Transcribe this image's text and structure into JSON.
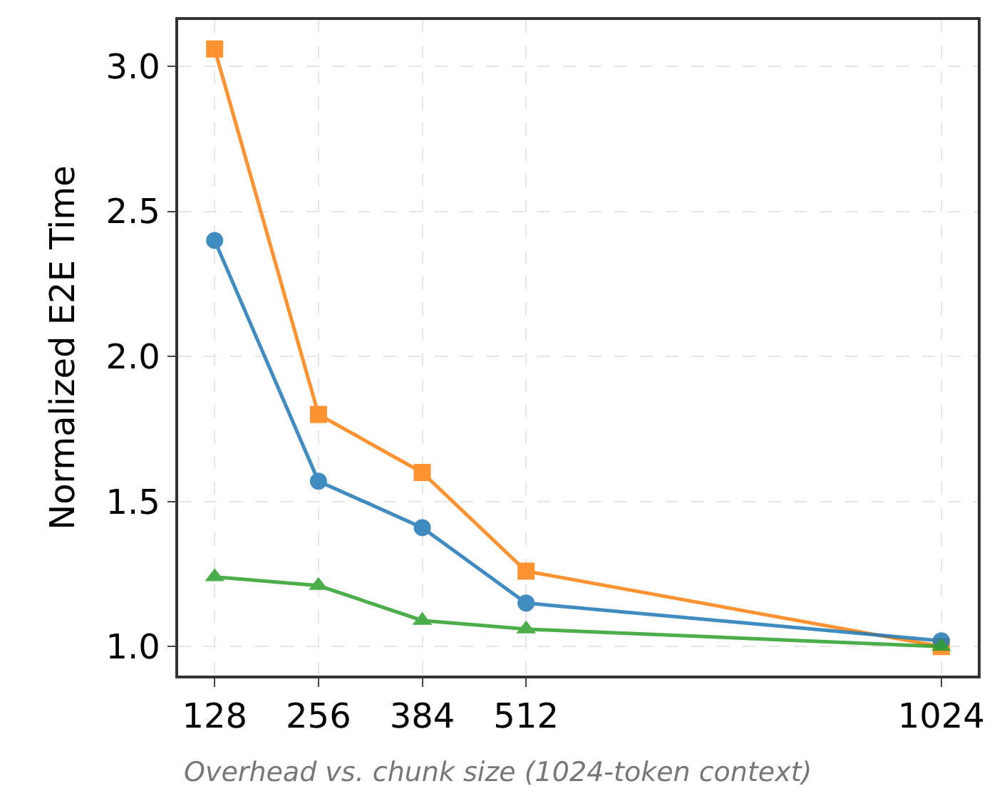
{
  "chart_data": {
    "type": "line",
    "ylabel": "Normalized E2E Time",
    "x": [
      128,
      256,
      384,
      512,
      1024
    ],
    "series": [
      {
        "color": "#ff7f0e",
        "marker": "square",
        "values": [
          3.06,
          1.8,
          1.6,
          1.26,
          1.0
        ]
      },
      {
        "color": "#1f77b4",
        "marker": "circle",
        "values": [
          2.4,
          1.57,
          1.41,
          1.15,
          1.02
        ]
      },
      {
        "color": "#2ca02c",
        "marker": "triangle",
        "values": [
          1.24,
          1.21,
          1.09,
          1.06,
          1.0
        ]
      }
    ],
    "xlim": [
      83,
      1069
    ],
    "xticks": [
      128,
      256,
      384,
      512,
      1024
    ],
    "ylim": [
      0.9,
      3.16
    ],
    "yticks": [
      {
        "value": 1.0,
        "label": "1.0"
      },
      {
        "value": 1.5,
        "label": "1.5"
      },
      {
        "value": 2.0,
        "label": "2.0"
      },
      {
        "value": 2.5,
        "label": "2.5"
      },
      {
        "value": 3.0,
        "label": "3.0"
      }
    ],
    "grid": true,
    "annotations": [
      "Overhead vs. chunk size (1024-token context)"
    ]
  }
}
